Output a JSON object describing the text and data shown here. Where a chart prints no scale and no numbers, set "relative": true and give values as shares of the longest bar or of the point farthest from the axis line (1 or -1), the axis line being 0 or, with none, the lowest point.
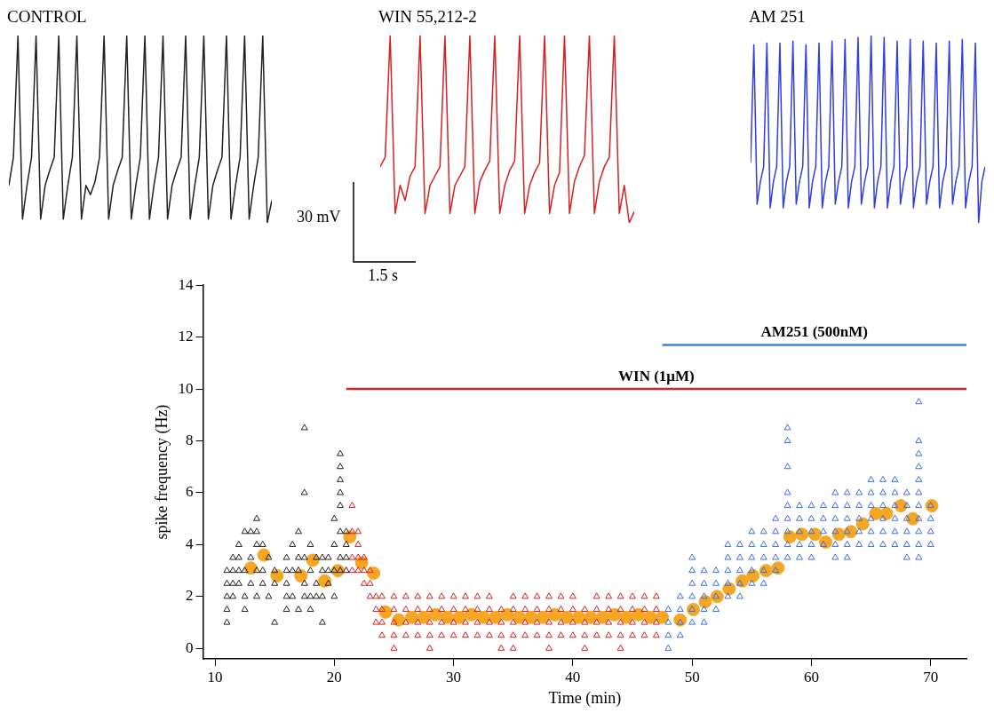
{
  "chart_data": [
    {
      "type": "line",
      "title": "CONTROL",
      "relative": true,
      "color": "#222222",
      "categories": [
        null,
        null,
        null,
        null,
        null,
        null,
        null,
        null,
        null,
        null,
        null,
        null,
        null,
        null,
        null,
        null,
        null,
        null,
        null,
        null,
        null,
        null,
        null,
        null,
        null,
        null,
        null,
        null,
        null,
        null,
        null,
        null,
        null,
        null,
        null,
        null,
        null,
        null,
        null,
        null,
        null,
        null,
        null,
        null,
        null,
        null,
        null,
        null,
        null,
        null,
        null,
        null,
        null,
        null,
        null,
        null,
        null,
        null,
        null
      ],
      "values": [
        0.2,
        0.35,
        1,
        0.02,
        0.2,
        0.35,
        1,
        0.02,
        0.2,
        0.28,
        0.35,
        1,
        0.02,
        0.2,
        0.35,
        1,
        0.02,
        0.2,
        0.15,
        0.22,
        0.35,
        1,
        0.02,
        0.2,
        0.28,
        0.35,
        1,
        0.02,
        0.2,
        0.35,
        1,
        0.02,
        0.2,
        0.35,
        1,
        0.02,
        0.2,
        0.28,
        0.35,
        1,
        0.02,
        0.2,
        0.35,
        1,
        0.02,
        0.2,
        0.28,
        0.35,
        1,
        0.02,
        0.2,
        0.35,
        1,
        0.02,
        0.2,
        0.35,
        1,
        0,
        0.12
      ]
    },
    {
      "type": "line",
      "title": "WIN 55,212-2",
      "relative": true,
      "color": "#d62020",
      "annotations": [
        "30 mV",
        "1.5 s"
      ],
      "categories": [
        null,
        null,
        null,
        null,
        null,
        null,
        null,
        null,
        null,
        null,
        null,
        null,
        null,
        null,
        null,
        null,
        null,
        null,
        null,
        null,
        null,
        null,
        null,
        null,
        null,
        null,
        null,
        null,
        null,
        null,
        null,
        null,
        null,
        null,
        null,
        null,
        null,
        null,
        null,
        null,
        null,
        null,
        null,
        null,
        null,
        null,
        null,
        null,
        null,
        null,
        null,
        null
      ],
      "values": [
        0.3,
        0.35,
        1,
        0.05,
        0.2,
        0.12,
        0.25,
        0.3,
        1,
        0.05,
        0.2,
        0.25,
        0.3,
        1,
        0.05,
        0.2,
        0.25,
        0.3,
        1,
        0.05,
        0.22,
        0.28,
        0.33,
        1,
        0.05,
        0.2,
        0.28,
        0.33,
        1,
        0.05,
        0.2,
        0.27,
        0.32,
        1,
        0.05,
        0.2,
        0.27,
        1,
        0.05,
        0.22,
        0.3,
        0.36,
        1,
        0.05,
        0.22,
        0.3,
        0.35,
        1,
        0.05,
        0.2,
        0,
        0.06
      ]
    },
    {
      "type": "line",
      "title": "AM 251",
      "relative": true,
      "color": "#2f3ee0",
      "categories": [
        null,
        null,
        null,
        null,
        null,
        null,
        null,
        null,
        null,
        null,
        null,
        null,
        null,
        null,
        null,
        null,
        null,
        null,
        null,
        null,
        null,
        null,
        null,
        null,
        null,
        null,
        null,
        null,
        null,
        null,
        null,
        null,
        null,
        null,
        null,
        null,
        null,
        null,
        null,
        null,
        null,
        null,
        null,
        null,
        null,
        null,
        null,
        null,
        null,
        null,
        null,
        null,
        null,
        null,
        null,
        null,
        null,
        null,
        null,
        null,
        null,
        null,
        null,
        null,
        null,
        null,
        null,
        null,
        null,
        null,
        null,
        null,
        null
      ],
      "values": [
        0.32,
        0.95,
        0.1,
        0.22,
        0.3,
        0.96,
        0.08,
        0.22,
        0.3,
        0.96,
        0.08,
        0.22,
        0.3,
        0.97,
        0.1,
        0.22,
        0.3,
        0.95,
        0.08,
        0.22,
        0.3,
        0.96,
        0.08,
        0.22,
        0.3,
        0.97,
        0.1,
        0.22,
        0.3,
        0.98,
        0.08,
        0.22,
        0.3,
        0.99,
        0.1,
        0.22,
        0.3,
        1,
        0.08,
        0.22,
        0.3,
        0.99,
        0.08,
        0.22,
        0.3,
        0.97,
        0.1,
        0.22,
        0.3,
        0.98,
        0.08,
        0.22,
        0.3,
        0.97,
        0.1,
        0.22,
        0.3,
        0.96,
        0.08,
        0.22,
        0.3,
        0.97,
        0.1,
        0.22,
        0.3,
        0.98,
        0.08,
        0.22,
        0.3,
        0.96,
        0,
        0.22,
        0.3
      ]
    },
    {
      "type": "scatter",
      "xlabel": "Time (min)",
      "ylabel": "spike frequency (Hz)",
      "xlim": [
        9,
        73
      ],
      "xticks": [
        10,
        20,
        30,
        40,
        50,
        60,
        70
      ],
      "ylim": [
        -0.4,
        14
      ],
      "yticks": [
        0,
        2,
        4,
        6,
        8,
        10,
        12,
        14
      ],
      "grid": false,
      "legend": false,
      "series": [
        {
          "type": "scatter",
          "marker": "triangle",
          "color": "#222222",
          "x": [
            11,
            11,
            11,
            11,
            11,
            11.5,
            11.5,
            11.5,
            11.5,
            12,
            12,
            12,
            12,
            12.5,
            12.5,
            12.5,
            12.5,
            13,
            13,
            13,
            13.5,
            13.5,
            13.5,
            13.5,
            13.5,
            14,
            14,
            14,
            14.5,
            14.5,
            15,
            15,
            15,
            16,
            16,
            16,
            16,
            16,
            16.5,
            16.5,
            16.5,
            17,
            17,
            17,
            17,
            17.5,
            17.5,
            17.5,
            17.5,
            17.5,
            18,
            18,
            18,
            18,
            18.5,
            18.5,
            18.5,
            19,
            19,
            19,
            19,
            19.5,
            19.5,
            19.5,
            20,
            20,
            20,
            20,
            20.5,
            20.5,
            20.5,
            20.5,
            20.5,
            20.5,
            20.5,
            20.5,
            21,
            21,
            21,
            21
          ],
          "values": [
            1,
            1.5,
            2,
            2.5,
            3,
            2,
            2.5,
            3,
            3.5,
            2.5,
            3,
            3.5,
            4,
            1.5,
            2,
            3,
            4.5,
            2.5,
            3.5,
            4.5,
            2,
            3,
            4,
            4.5,
            5,
            2.5,
            3,
            4,
            2,
            3.5,
            1,
            2.5,
            3,
            1.5,
            2,
            2.5,
            3,
            3.5,
            2,
            3,
            4,
            1.5,
            3,
            3.5,
            4.5,
            2,
            2.5,
            3.5,
            6,
            8.5,
            1.5,
            2,
            3,
            4,
            2,
            2.5,
            3.5,
            1,
            2,
            3,
            3.5,
            2.5,
            3,
            3.5,
            2,
            3,
            4,
            5,
            3,
            3.5,
            4.5,
            5.5,
            6,
            6.5,
            7,
            7.5,
            3,
            3.5,
            4,
            4.5
          ]
        },
        {
          "type": "scatter",
          "marker": "triangle",
          "color": "#d62020",
          "x": [
            21.5,
            21.5,
            21.5,
            21.5,
            22,
            22,
            22,
            22,
            22.5,
            22.5,
            22.5,
            23,
            23,
            23,
            23.5,
            23.5,
            23.5,
            24,
            24,
            24,
            24,
            25,
            25,
            25,
            25,
            25,
            26,
            26,
            26,
            26,
            27,
            27,
            27,
            27,
            28,
            28,
            28,
            28,
            28,
            29,
            29,
            29,
            29,
            30,
            30,
            30,
            30,
            31,
            31,
            31,
            31,
            32,
            32,
            32,
            32,
            33,
            33,
            33,
            33,
            34,
            34,
            34,
            34,
            35,
            35,
            35,
            35,
            35,
            36,
            36,
            36,
            36,
            37,
            37,
            37,
            37,
            38,
            38,
            38,
            38,
            38,
            39,
            39,
            39,
            39,
            40,
            40,
            40,
            40,
            41,
            41,
            41,
            41,
            42,
            42,
            42,
            42,
            43,
            43,
            43,
            43,
            44,
            44,
            44,
            44,
            44,
            45,
            45,
            45,
            45,
            46,
            46,
            46,
            46,
            47,
            47,
            47,
            47
          ],
          "values": [
            3,
            3.5,
            4.5,
            5.5,
            3,
            3.5,
            4,
            4.5,
            2.5,
            3,
            3.5,
            2,
            2.5,
            3,
            1,
            1.5,
            2,
            0.5,
            1,
            1.5,
            2,
            0,
            0.5,
            1,
            1.5,
            2,
            0.5,
            1,
            1.5,
            2,
            0.5,
            1,
            1.5,
            2,
            0,
            0.5,
            1,
            1.5,
            2,
            0.5,
            1,
            1.5,
            2,
            0.5,
            1,
            1.5,
            2,
            0.5,
            1,
            1.5,
            2,
            0.5,
            1,
            1.5,
            2,
            0.5,
            1,
            1.5,
            2,
            0,
            0.5,
            1,
            1.5,
            0.5,
            1,
            1.5,
            2,
            0,
            0.5,
            1,
            1.5,
            2,
            0.5,
            1,
            1.5,
            2,
            0,
            0.5,
            1,
            1.5,
            2,
            0.5,
            1,
            1.5,
            2,
            0.5,
            1,
            1.5,
            2,
            0,
            0.5,
            1,
            1.5,
            0.5,
            1,
            1.5,
            2,
            0.5,
            1,
            1.5,
            2,
            0,
            0.5,
            1,
            1.5,
            2,
            0.5,
            1,
            1.5,
            2,
            0.5,
            1,
            1.5,
            2,
            0.5,
            1,
            1.5,
            2
          ]
        },
        {
          "type": "scatter",
          "marker": "triangle",
          "color": "#3a6fe0",
          "x": [
            48,
            48,
            48,
            48,
            49,
            49,
            49,
            49,
            50,
            50,
            50,
            50,
            50,
            50,
            51,
            51,
            51,
            51,
            51,
            52,
            52,
            52,
            52,
            53,
            53,
            53,
            53,
            53,
            54,
            54,
            54,
            54,
            54,
            55,
            55,
            55,
            55,
            55,
            56,
            56,
            56,
            56,
            56,
            57,
            57,
            57,
            57,
            57,
            58,
            58,
            58,
            58,
            58,
            58,
            58,
            58,
            58,
            59,
            59,
            59,
            59,
            59,
            60,
            60,
            60,
            60,
            60,
            61,
            61,
            61,
            61,
            62,
            62,
            62,
            62,
            62,
            62,
            63,
            63,
            63,
            63,
            63,
            63,
            64,
            64,
            64,
            64,
            64,
            65,
            65,
            65,
            65,
            65,
            65,
            66,
            66,
            66,
            66,
            66,
            66,
            67,
            67,
            67,
            67,
            67,
            67,
            68,
            68,
            68,
            68,
            68,
            68,
            69,
            69,
            69,
            69,
            69,
            69,
            69,
            69,
            69,
            69,
            69,
            70,
            70,
            70,
            70
          ],
          "values": [
            0,
            0.5,
            1,
            1.5,
            0.5,
            1,
            1.5,
            2,
            1,
            1.5,
            2,
            2.5,
            3,
            3.5,
            1,
            1.5,
            2,
            2.5,
            3,
            1.5,
            2,
            2.5,
            3,
            2,
            2.5,
            3,
            3.5,
            4,
            2,
            2.5,
            3,
            3.5,
            4,
            2.5,
            3,
            3.5,
            4,
            4.5,
            2.5,
            3,
            3.5,
            4,
            4.5,
            3,
            3.5,
            4,
            4.5,
            5,
            3.5,
            4,
            4.5,
            5,
            5.5,
            6,
            7,
            8,
            8.5,
            3.5,
            4,
            4.5,
            5,
            5.5,
            3.5,
            4,
            4.5,
            5,
            5.5,
            4,
            4.5,
            5,
            5.5,
            3.5,
            4,
            4.5,
            5,
            5.5,
            6,
            3.5,
            4,
            4.5,
            5,
            5.5,
            6,
            4,
            4.5,
            5,
            5.5,
            6,
            4,
            4.5,
            5,
            5.5,
            6,
            6.5,
            4,
            4.5,
            5,
            5.5,
            6,
            6.5,
            4,
            4.5,
            5,
            5.5,
            6,
            6.5,
            3.5,
            4,
            4.5,
            5,
            5.5,
            6,
            3.5,
            4,
            4.5,
            5,
            5.5,
            6,
            6.5,
            7,
            7.5,
            8,
            9.5,
            4,
            4.5,
            5,
            5.5
          ]
        },
        {
          "type": "scatter",
          "marker": "circle",
          "color": "#f5a623",
          "x": [
            13,
            14.1,
            15.2,
            17.2,
            18.2,
            19.2,
            20.3,
            21.3,
            22.3,
            23.3,
            24.3,
            25.4,
            26.5,
            27.5,
            28.5,
            29.5,
            30.5,
            31.5,
            32.5,
            33.5,
            34.5,
            35.5,
            36.5,
            37.5,
            38.5,
            39.5,
            40.5,
            41.5,
            42.5,
            43.5,
            44.5,
            45.5,
            46.5,
            47.5,
            49,
            50.1,
            51.1,
            52.1,
            53.1,
            54.2,
            55.1,
            56.2,
            57.2,
            58.2,
            59.2,
            60.3,
            61.2,
            62.3,
            63.3,
            64.3,
            65.4,
            66.3,
            67.5,
            68.5,
            70.1
          ],
          "values": [
            3.1,
            3.6,
            2.8,
            2.8,
            3.4,
            2.6,
            3,
            4.3,
            3.3,
            2.9,
            1.4,
            1.1,
            1.2,
            1.2,
            1.3,
            1.2,
            1.2,
            1.3,
            1.2,
            1.2,
            1.3,
            1.2,
            1.2,
            1.2,
            1.3,
            1.2,
            1.2,
            1.2,
            1.2,
            1.3,
            1.2,
            1.3,
            1.2,
            1.2,
            1.1,
            1.5,
            1.8,
            2,
            2.3,
            2.6,
            2.8,
            3,
            3.1,
            4.3,
            4.4,
            4.4,
            4.1,
            4.4,
            4.5,
            4.8,
            5.2,
            5.2,
            5.5,
            5,
            5.5
          ]
        },
        {
          "type": "line",
          "name": "WIN (1μM)",
          "color": "#c8282d",
          "x": [
            21,
            73
          ],
          "values": [
            10,
            10
          ]
        },
        {
          "type": "line",
          "name": "AM251 (500nM)",
          "color": "#3f7fe0",
          "x": [
            47.5,
            73
          ],
          "values": [
            11.7,
            11.7
          ]
        }
      ]
    }
  ]
}
